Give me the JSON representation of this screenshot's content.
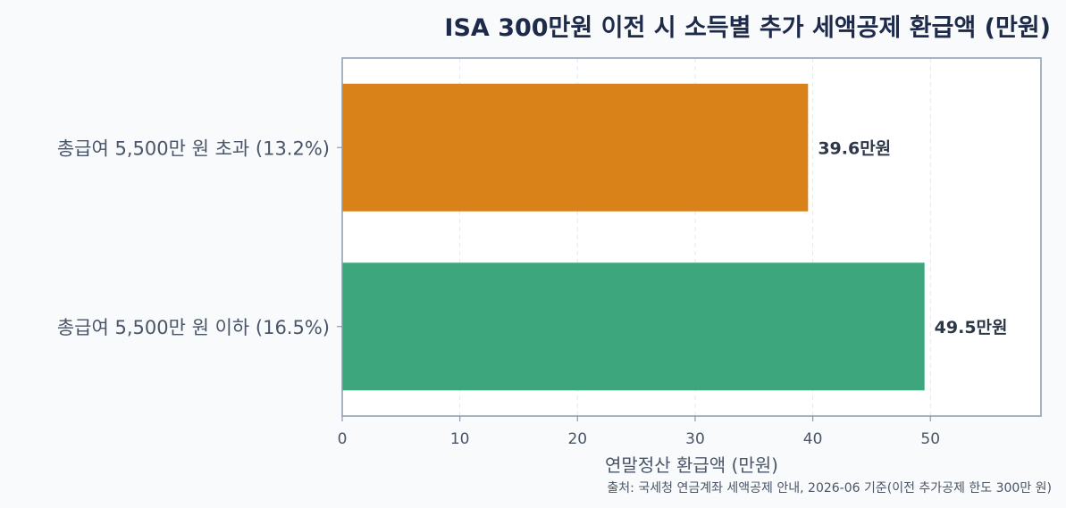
{
  "chart_data": {
    "type": "bar",
    "orientation": "horizontal",
    "title": "ISA 300만원 이전 시 소득별 추가 세액공제 환급액 (만원)",
    "xlabel": "연말정산 환급액 (만원)",
    "ylabel": "",
    "xlim": [
      0,
      59.4
    ],
    "xticks": [
      0,
      10,
      20,
      30,
      40,
      50
    ],
    "grid": "vertical dashed",
    "bars": [
      {
        "category": "총급여 5,500만 원 초과 (13.2%)",
        "value": 39.6,
        "label": "39.6만원",
        "color": "#d9821a"
      },
      {
        "category": "총급여 5,500만 원 이하 (16.5%)",
        "value": 49.5,
        "label": "49.5만원",
        "color": "#3ea67c"
      }
    ],
    "source": "출처: 국세청 연금계좌 세액공제 안내, 2026-06 기준(이전 추가공제 한도 300만 원)"
  }
}
